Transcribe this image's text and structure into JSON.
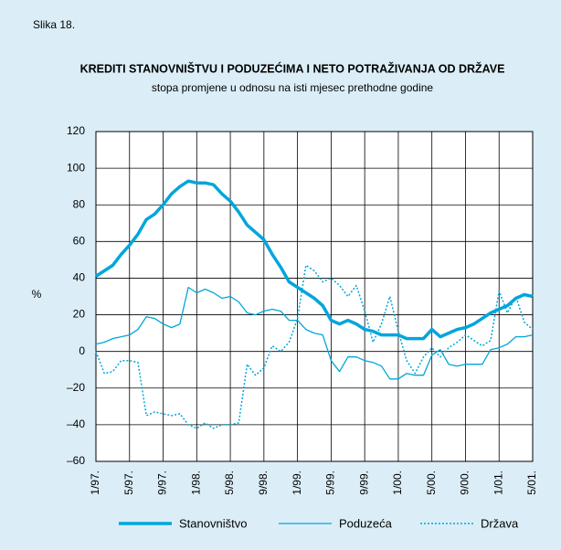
{
  "chart_data": {
    "type": "line",
    "figure_label": "Slika 18.",
    "title": "KREDITI STANOVNIŠTVU I PODUZEĆIMA  I NETO POTRAŽIVANJA OD DRŽAVE",
    "subtitle": "stopa promjene u odnosu na isti mjesec prethodne godine",
    "y_label": "%",
    "categories": [
      "1/97.",
      null,
      null,
      null,
      "5/97.",
      null,
      null,
      null,
      "9/97.",
      null,
      null,
      null,
      "1/98.",
      null,
      null,
      null,
      "5/98.",
      null,
      null,
      null,
      "9/98.",
      null,
      null,
      null,
      "1/99.",
      null,
      null,
      null,
      "5/99.",
      null,
      null,
      null,
      "9/99.",
      null,
      null,
      null,
      "1/00.",
      null,
      null,
      null,
      "5/00.",
      null,
      null,
      null,
      "9/00.",
      null,
      null,
      null,
      "1/01.",
      null,
      null,
      null,
      "5/01."
    ],
    "series": [
      {
        "name": "Stanovništvo",
        "color": "#00a6dc",
        "width": 3.5,
        "dash": "solid",
        "values": [
          41,
          44,
          47,
          53,
          58,
          64,
          72,
          75,
          80,
          86,
          90,
          93,
          92,
          92,
          91,
          86,
          82,
          76,
          69,
          65,
          61,
          53,
          46,
          38,
          35,
          32,
          29,
          25,
          17,
          15,
          17,
          15,
          12,
          11,
          9,
          9,
          9,
          7,
          7,
          7,
          12,
          8,
          10,
          12,
          13,
          15,
          18,
          21,
          23,
          25,
          29,
          31,
          30
        ]
      },
      {
        "name": "Poduzeća",
        "color": "#00a6dc",
        "width": 1.3,
        "dash": "solid",
        "values": [
          4,
          5,
          7,
          8,
          9,
          12,
          19,
          18,
          15,
          13,
          15,
          35,
          32,
          34,
          32,
          29,
          30,
          27,
          21,
          20,
          22,
          23,
          22,
          17,
          17,
          12,
          10,
          9,
          -5,
          -11,
          -3,
          -3,
          -5,
          -6,
          -8,
          -15,
          -15,
          -12,
          -13,
          -13,
          -2,
          1,
          -7,
          -8,
          -7,
          -7,
          -7,
          1,
          2,
          4,
          8,
          8,
          9
        ]
      },
      {
        "name": "Država",
        "color": "#00a6dc",
        "width": 1.5,
        "dash": "dotted",
        "values": [
          0,
          -12,
          -11,
          -5,
          -5,
          -6,
          -35,
          -33,
          -34,
          -35,
          -34,
          -40,
          -42,
          -39,
          -42,
          -40,
          -40,
          -39,
          -7,
          -13,
          -9,
          3,
          0,
          5,
          18,
          47,
          44,
          38,
          40,
          36,
          30,
          36,
          22,
          5,
          15,
          30,
          11,
          -5,
          -12,
          -3,
          2,
          -3,
          2,
          5,
          9,
          6,
          3,
          6,
          33,
          21,
          30,
          16,
          12
        ]
      }
    ],
    "ylim": [
      -60,
      120
    ],
    "yticks": [
      {
        "value": -60,
        "label": "–60"
      },
      {
        "value": -40,
        "label": "–40"
      },
      {
        "value": -20,
        "label": "–20"
      },
      0,
      20,
      40,
      60,
      80,
      100,
      120
    ],
    "grid": true,
    "legend": "bottom"
  }
}
